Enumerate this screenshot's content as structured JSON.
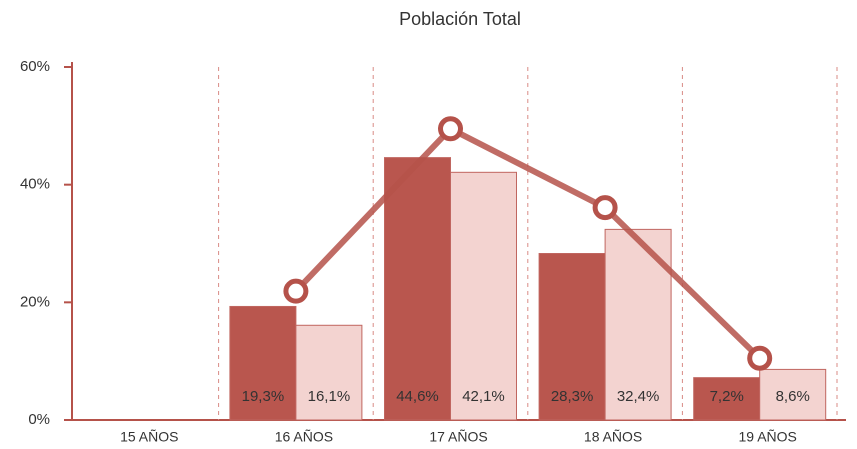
{
  "chart_data": {
    "type": "bar",
    "title": "Población Total",
    "categories": [
      "15 AÑOS",
      "16 AÑOS",
      "17 AÑOS",
      "18 AÑOS",
      "19 AÑOS"
    ],
    "series": [
      {
        "color": "#b9564e",
        "values": [
          null,
          19.3,
          44.6,
          28.3,
          7.2
        ],
        "value_labels": [
          null,
          "19,3%",
          "44,6%",
          "28,3%",
          "7,2%"
        ]
      },
      {
        "color": "#f3d3d0",
        "values": [
          null,
          16.1,
          42.1,
          32.4,
          8.6
        ],
        "value_labels": [
          null,
          "16,1%",
          "42,1%",
          "32,4%",
          "8,6%"
        ]
      },
      {
        "type": "line",
        "color": "#b5524a",
        "values": [
          null,
          21.9,
          49.5,
          36.1,
          10.5
        ]
      }
    ],
    "ylim": [
      0,
      60
    ],
    "yticks": [
      {
        "value": 0,
        "label": "0%"
      },
      {
        "value": 20,
        "label": "20%"
      },
      {
        "value": 40,
        "label": "40%"
      },
      {
        "value": 60,
        "label": "60%"
      }
    ]
  }
}
